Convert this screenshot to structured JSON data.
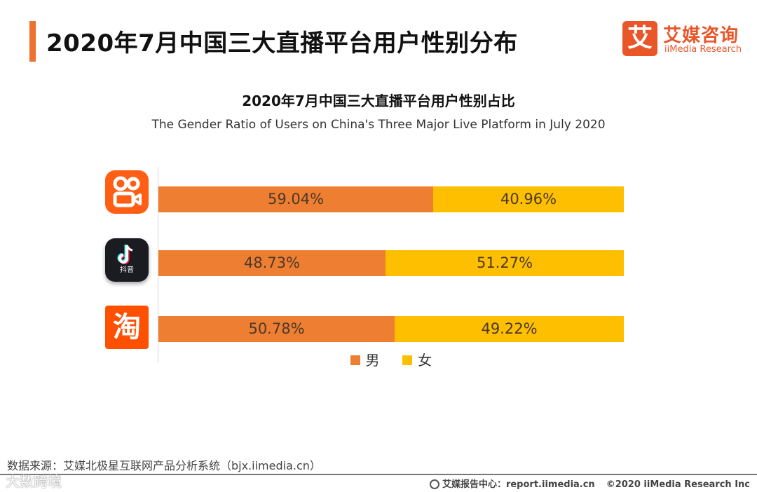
{
  "header": {
    "title": "2020年7月中国三大直播平台用户性别分布",
    "brand_mark": "艾",
    "brand_cn": "艾媒咨询",
    "brand_en": "iiMedia Research"
  },
  "colors": {
    "accent": "#f0702e",
    "male": "#ee7e31",
    "female": "#fdbf00",
    "brand": "#e8562a"
  },
  "platforms": [
    {
      "icon": "kuaishou-logo-icon"
    },
    {
      "icon": "douyin-logo-icon",
      "label": "抖音"
    },
    {
      "icon": "taobao-logo-icon",
      "label": "淘"
    }
  ],
  "chart_data": {
    "type": "bar",
    "orientation": "horizontal",
    "stacked": "100%",
    "title": "2020年7月中国三大直播平台用户性别占比",
    "subtitle": "The Gender Ratio of Users on China's Three Major Live Platform in July 2020",
    "series": [
      {
        "name": "男",
        "values": [
          59.04,
          48.73,
          50.78
        ],
        "labels": [
          "59.04%",
          "48.73%",
          "50.78%"
        ]
      },
      {
        "name": "女",
        "values": [
          40.96,
          51.27,
          49.22
        ],
        "labels": [
          "40.96%",
          "51.27%",
          "49.22%"
        ]
      }
    ],
    "legend": {
      "position": "bottom-center",
      "items": [
        "男",
        "女"
      ]
    }
  },
  "footer": {
    "source": "数据来源：艾媒北极星互联网产品分析系统（bjx.iimedia.cn）",
    "report": "艾媒报告中心：report.iimedia.cn",
    "copyright": "©2020  iiMedia Research  Inc",
    "watermark": "大数跨境"
  }
}
